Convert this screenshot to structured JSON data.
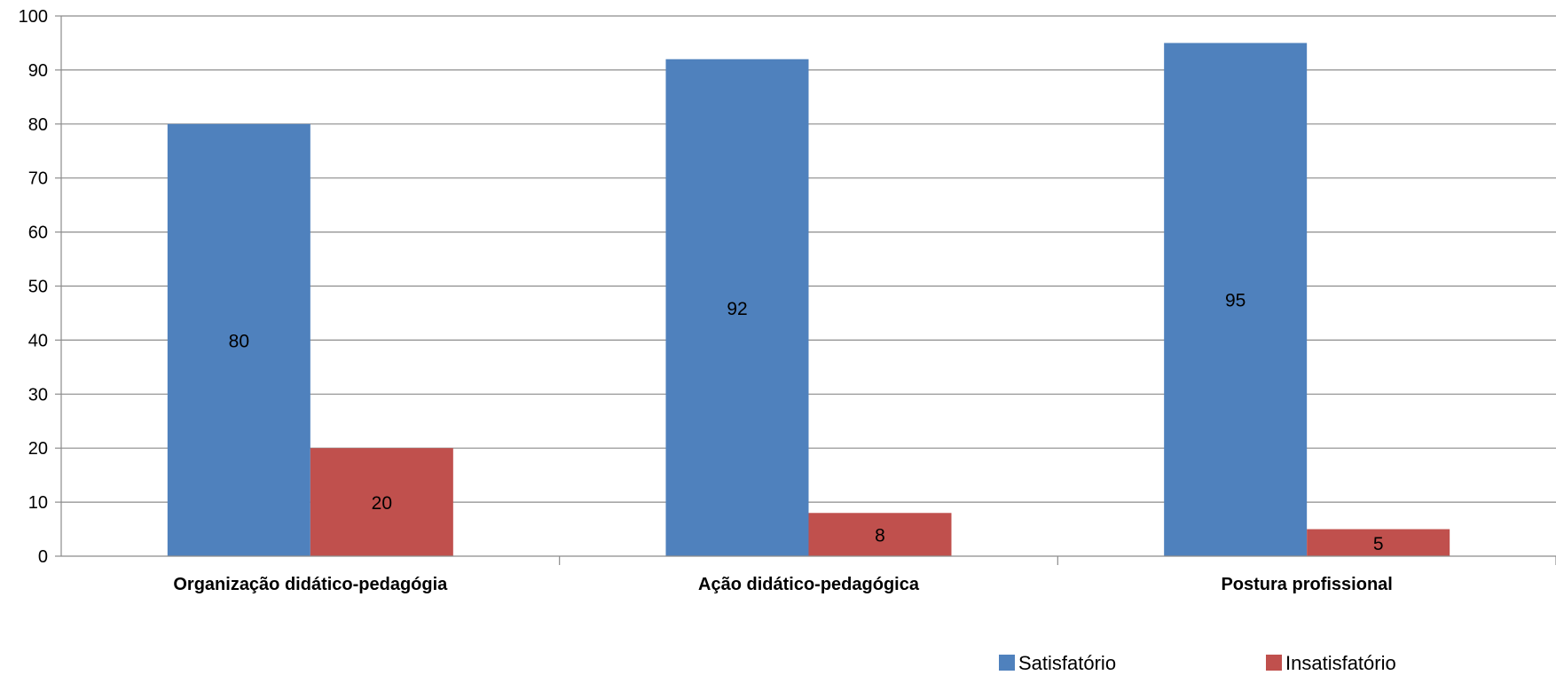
{
  "chart_data": {
    "type": "bar",
    "title": "",
    "xlabel": "",
    "ylabel": "",
    "categories": [
      "Organização didático-pedagógia",
      "Ação didático-pedagógica",
      "Postura profissional"
    ],
    "series": [
      {
        "name": "Satisfatório",
        "values": [
          80,
          92,
          95
        ],
        "color": "#4f81bd"
      },
      {
        "name": "Insatisfatório",
        "values": [
          20,
          8,
          5
        ],
        "color": "#c0504d"
      }
    ],
    "ylim": [
      0,
      100
    ],
    "yticks": [
      0,
      10,
      20,
      30,
      40,
      50,
      60,
      70,
      80,
      90,
      100
    ],
    "grid": true,
    "data_labels": true,
    "legend_position": "bottom-right"
  }
}
